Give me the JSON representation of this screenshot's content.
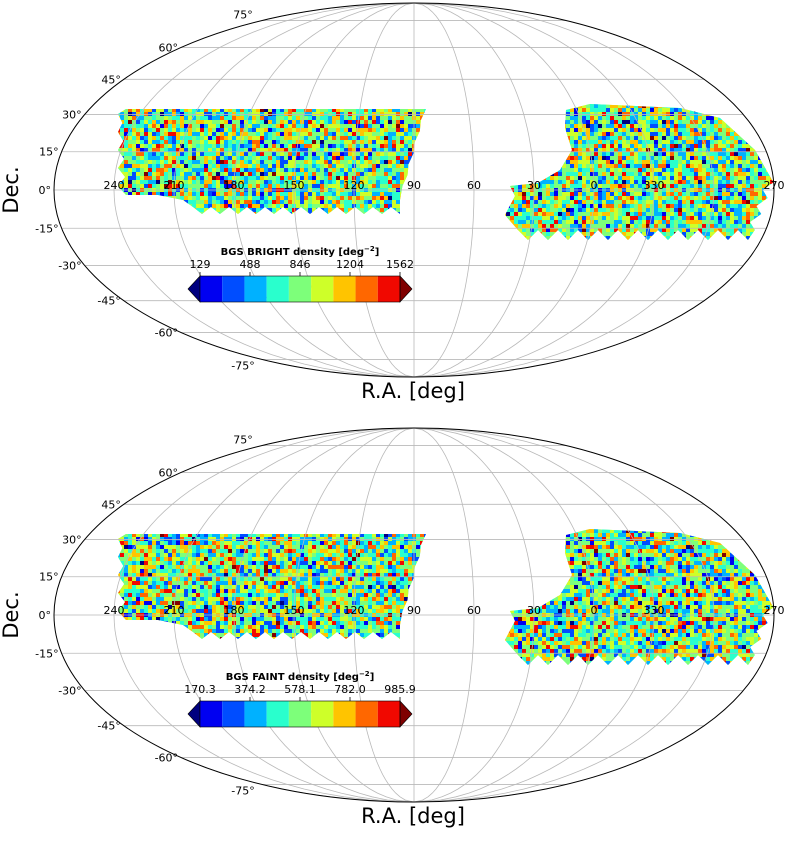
{
  "panels": [
    {
      "ylabel": "Dec.",
      "xlabel": "R.A. [deg]",
      "colorbar": {
        "title": "BGS BRIGHT density [deg",
        "title_sup": "−2",
        "title_end": "]",
        "ticks": [
          "129",
          "488",
          "846",
          "1204",
          "1562"
        ],
        "colors": [
          "#00007f",
          "#0000f1",
          "#004dff",
          "#00b1ff",
          "#29ffcd",
          "#7dff7a",
          "#ceff29",
          "#ffc400",
          "#ff6700",
          "#f10800",
          "#7f0000"
        ]
      }
    },
    {
      "ylabel": "Dec.",
      "xlabel": "R.A. [deg]",
      "colorbar": {
        "title": "BGS FAINT density [deg",
        "title_sup": "−2",
        "title_end": "]",
        "ticks": [
          "170.3",
          "374.2",
          "578.1",
          "782.0",
          "985.9"
        ],
        "colors": [
          "#00007f",
          "#0000f1",
          "#004dff",
          "#00b1ff",
          "#29ffcd",
          "#7dff7a",
          "#ceff29",
          "#ffc400",
          "#ff6700",
          "#f10800",
          "#7f0000"
        ]
      }
    }
  ],
  "dec_labels": [
    "75°",
    "60°",
    "45°",
    "30°",
    "15°",
    "0°",
    "-15°",
    "-30°",
    "-45°",
    "-60°",
    "-75°"
  ],
  "ra_labels": [
    "270",
    "240",
    "210",
    "180",
    "150",
    "120",
    "90",
    "60",
    "30",
    "0",
    "330"
  ]
}
